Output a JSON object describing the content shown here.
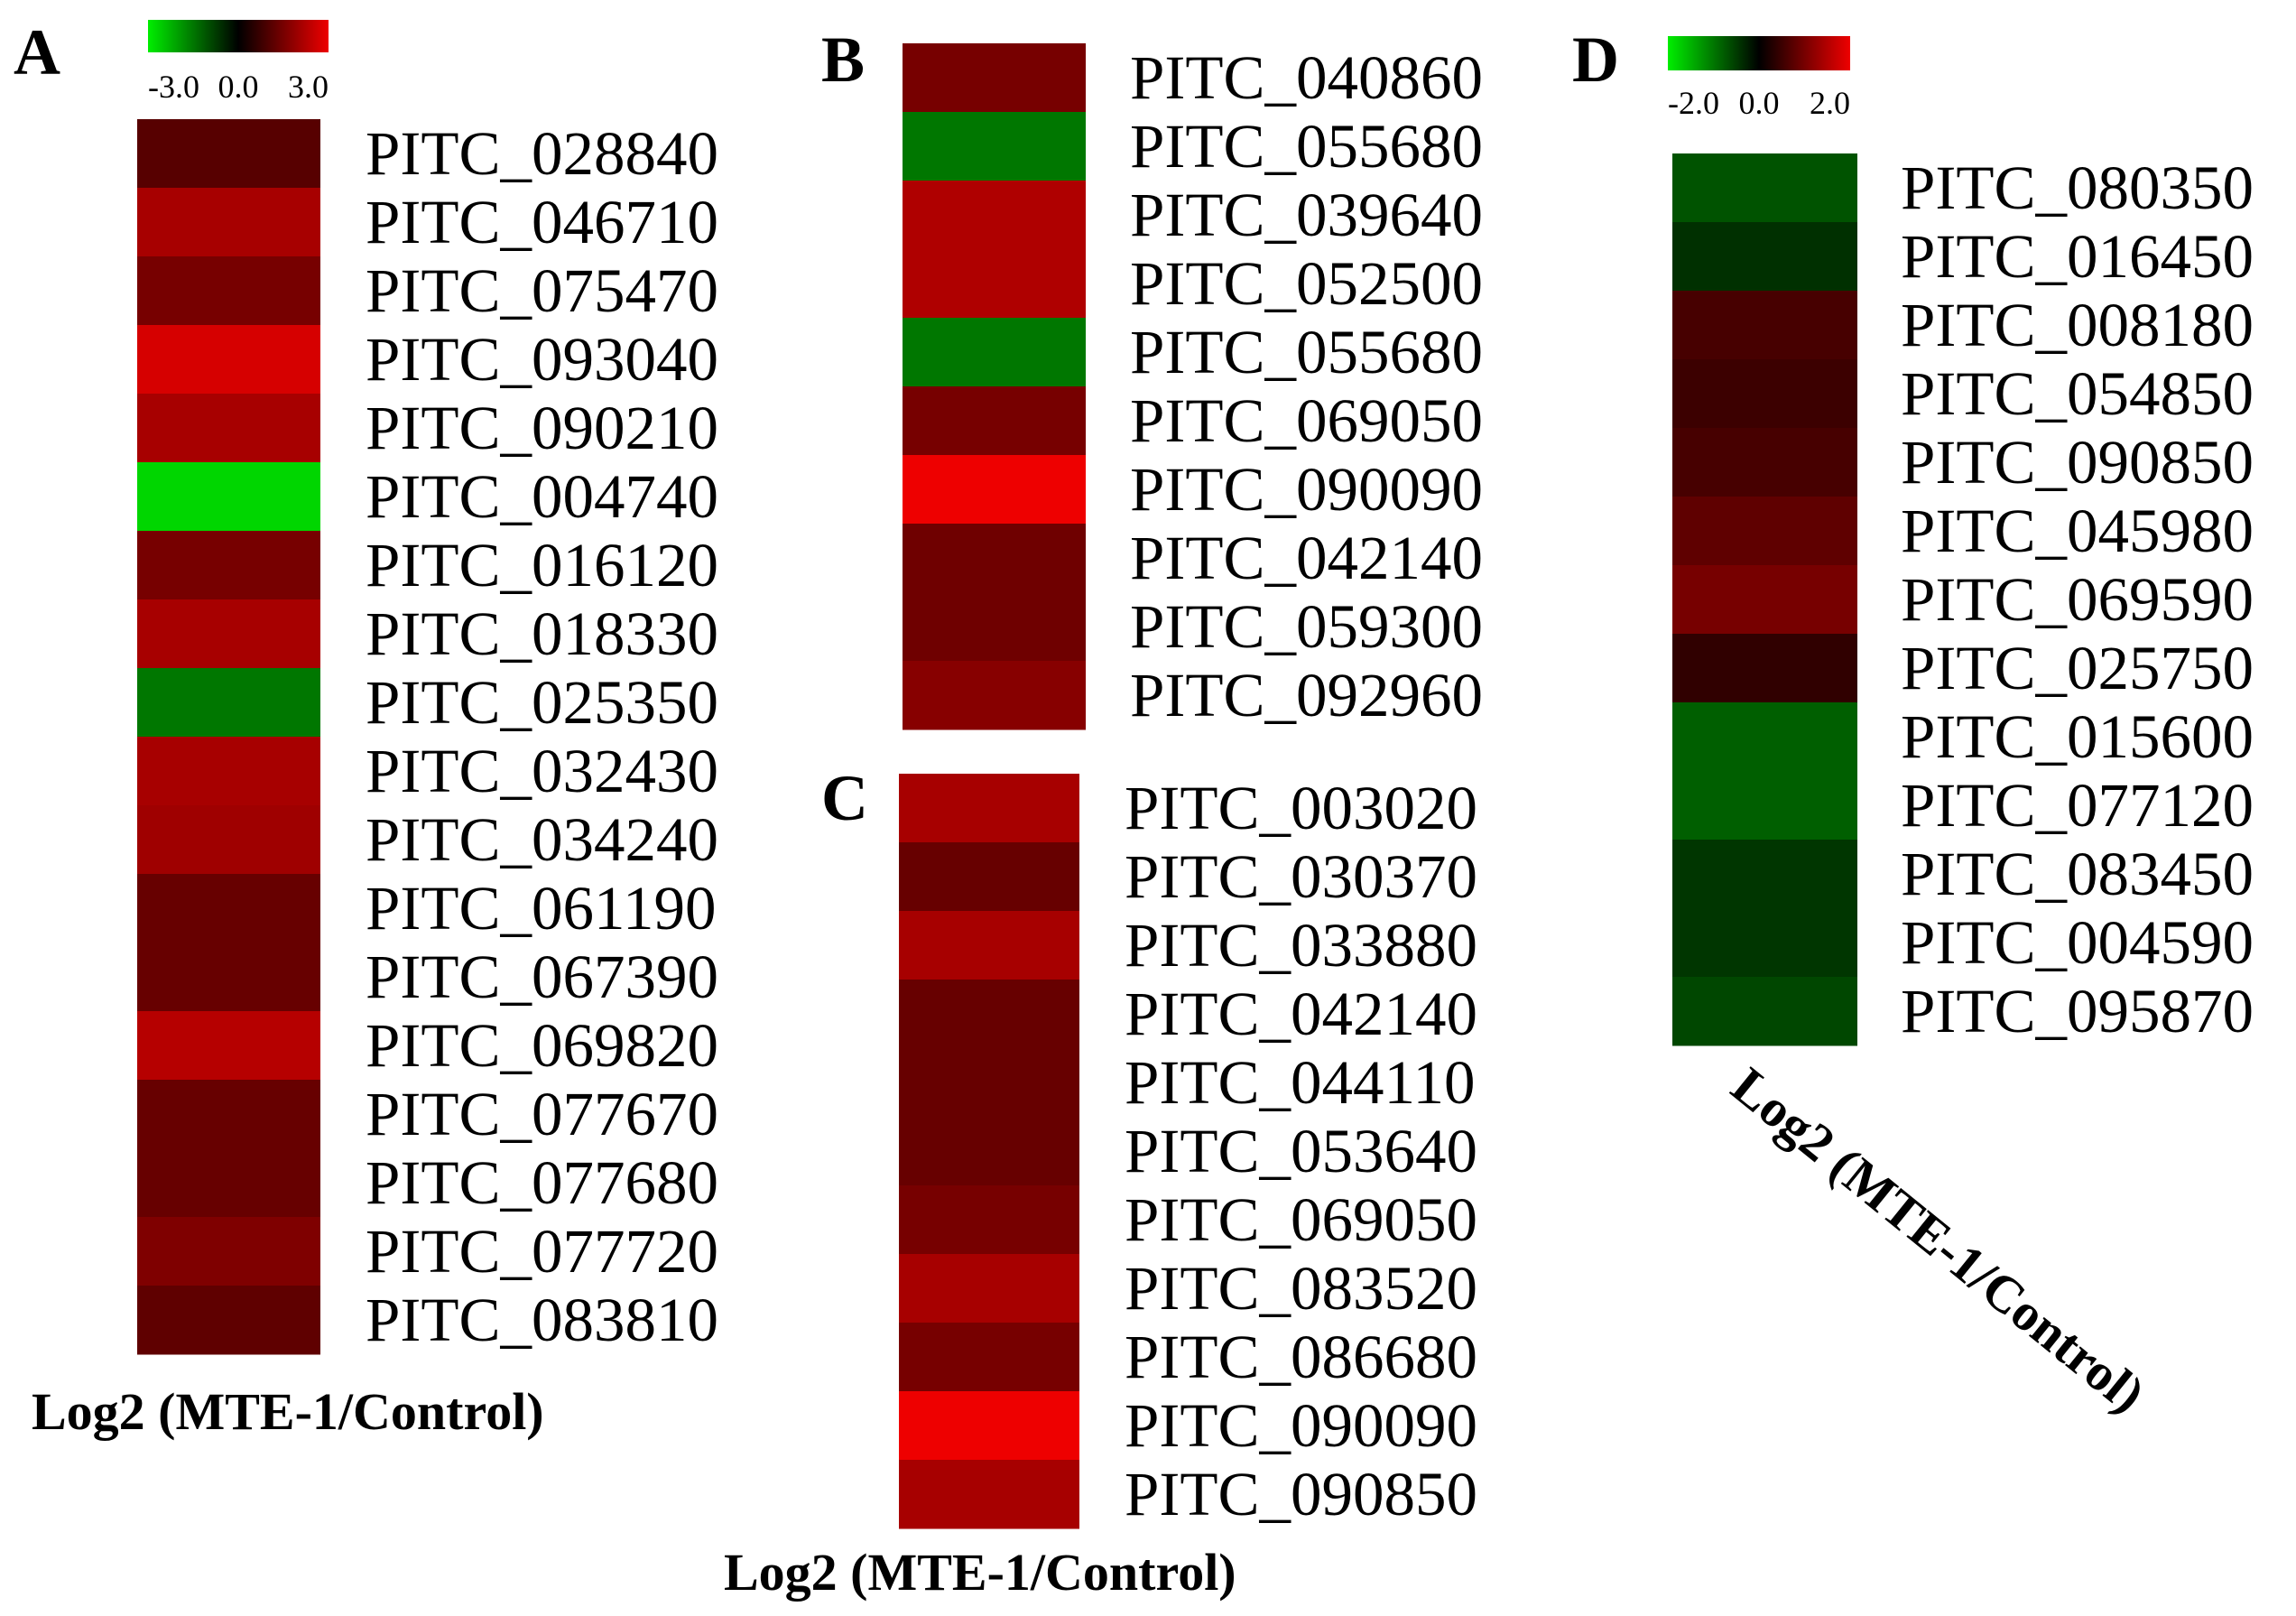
{
  "chart_data": [
    {
      "type": "heatmap",
      "panel": "A",
      "scale": {
        "min": -3.0,
        "mid": 0.0,
        "max": 3.0,
        "tick_labels": [
          "-3.0",
          "0.0",
          "3.0"
        ]
      },
      "value_label": "Log2 (MTE-1/Control)",
      "rows": [
        "PITC_028840",
        "PITC_046710",
        "PITC_075470",
        "PITC_093040",
        "PITC_090210",
        "PITC_004740",
        "PITC_016120",
        "PITC_018330",
        "PITC_025350",
        "PITC_032430",
        "PITC_034240",
        "PITC_061190",
        "PITC_067390",
        "PITC_069820",
        "PITC_077670",
        "PITC_077680",
        "PITC_077720",
        "PITC_083810"
      ],
      "values": [
        1.1,
        2.1,
        1.5,
        2.7,
        2.1,
        -2.7,
        1.5,
        2.1,
        -1.5,
        2.1,
        2.0,
        1.3,
        1.3,
        2.3,
        1.3,
        1.3,
        1.6,
        1.2
      ]
    },
    {
      "type": "heatmap",
      "panel": "B",
      "value_label": "",
      "rows": [
        "PITC_040860",
        "PITC_055680",
        "PITC_039640",
        "PITC_052500",
        "PITC_055680",
        "PITC_069050",
        "PITC_090090",
        "PITC_042140",
        "PITC_059300",
        "PITC_092960"
      ],
      "values": [
        1.5,
        -1.5,
        2.2,
        2.2,
        -1.5,
        1.5,
        3.0,
        1.4,
        1.4,
        1.7
      ]
    },
    {
      "type": "heatmap",
      "panel": "C",
      "value_label": "Log2 (MTE-1/Control)",
      "rows": [
        "PITC_003020",
        "PITC_030370",
        "PITC_033880",
        "PITC_042140",
        "PITC_044110",
        "PITC_053640",
        "PITC_069050",
        "PITC_083520",
        "PITC_086680",
        "PITC_090090",
        "PITC_090850"
      ],
      "values": [
        2.1,
        1.3,
        2.1,
        1.3,
        1.3,
        1.3,
        1.5,
        2.1,
        1.5,
        3.0,
        2.1
      ]
    },
    {
      "type": "heatmap",
      "panel": "D",
      "scale": {
        "min": -2.0,
        "mid": 0.0,
        "max": 2.0,
        "tick_labels": [
          "-2.0",
          "0.0",
          "2.0"
        ]
      },
      "value_label": "Log2 (MTE-1/Control)",
      "rows": [
        "PITC_080350",
        "PITC_016450",
        "PITC_008180",
        "PITC_054850",
        "PITC_090850",
        "PITC_045980",
        "PITC_069590",
        "PITC_025750",
        "PITC_015600",
        "PITC_077120",
        "PITC_083450",
        "PITC_004590",
        "PITC_095870"
      ],
      "values": [
        -0.7,
        -0.4,
        0.6,
        0.5,
        0.6,
        0.8,
        1.0,
        0.4,
        -0.8,
        -0.8,
        -0.45,
        -0.45,
        -0.6
      ]
    }
  ]
}
